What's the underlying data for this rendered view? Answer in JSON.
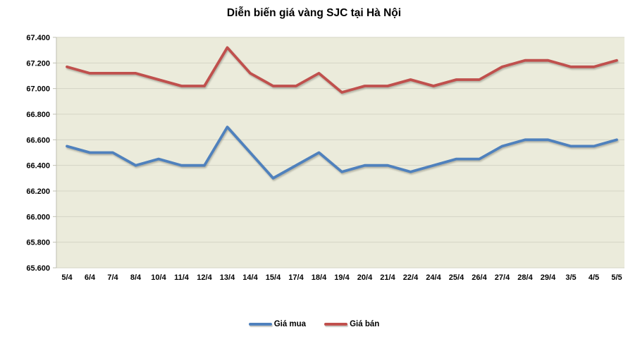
{
  "chart_data": {
    "type": "line",
    "title": "Diễn biến giá vàng SJC tại Hà Nội",
    "categories": [
      "5/4",
      "6/4",
      "7/4",
      "8/4",
      "10/4",
      "11/4",
      "12/4",
      "13/4",
      "14/4",
      "15/4",
      "17/4",
      "18/4",
      "19/4",
      "20/4",
      "21/4",
      "22/4",
      "24/4",
      "25/4",
      "26/4",
      "27/4",
      "28/4",
      "29/4",
      "3/5",
      "4/5",
      "5/5"
    ],
    "series": [
      {
        "name": "Giá mua",
        "color": "#4F81BD",
        "values": [
          66.55,
          66.5,
          66.5,
          66.4,
          66.45,
          66.4,
          66.4,
          66.7,
          66.5,
          66.3,
          66.4,
          66.5,
          66.35,
          66.4,
          66.4,
          66.35,
          66.4,
          66.45,
          66.45,
          66.55,
          66.6,
          66.6,
          66.55,
          66.55,
          66.6
        ]
      },
      {
        "name": "Giá bán",
        "color": "#C0504D",
        "values": [
          67.17,
          67.12,
          67.12,
          67.12,
          67.07,
          67.02,
          67.02,
          67.32,
          67.12,
          67.02,
          67.02,
          67.12,
          66.97,
          67.02,
          67.02,
          67.07,
          67.02,
          67.07,
          67.07,
          67.17,
          67.22,
          67.22,
          67.17,
          67.17,
          67.22
        ]
      }
    ],
    "ylim": [
      65.6,
      67.4
    ],
    "ytick_step": 0.2,
    "yticks": [
      "67.400",
      "67.200",
      "67.000",
      "66.800",
      "66.600",
      "66.400",
      "66.200",
      "66.000",
      "65.800",
      "65.600"
    ],
    "xlabel": "",
    "ylabel": "",
    "grid": "horizontal",
    "legend_position": "bottom",
    "plot_bg": "#EBEBDB",
    "grid_color": "#D4D4C6",
    "axis_color": "#BFBFB2"
  }
}
